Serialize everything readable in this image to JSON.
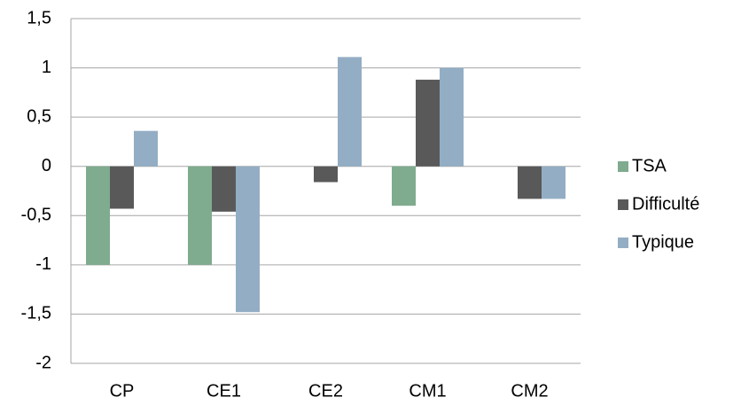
{
  "chart_data": {
    "type": "bar",
    "categories": [
      "CP",
      "CE1",
      "CE2",
      "CM1",
      "CM2"
    ],
    "series": [
      {
        "name": "TSA",
        "color": "#7fab8e",
        "values": [
          -1,
          -1,
          0,
          -0.4,
          0
        ]
      },
      {
        "name": "Difficulté",
        "color": "#595959",
        "values": [
          -0.43,
          -0.46,
          -0.16,
          0.88,
          -0.33
        ]
      },
      {
        "name": "Typique",
        "color": "#93aec4",
        "values": [
          0.36,
          -1.48,
          1.11,
          1.0,
          -0.33
        ]
      }
    ],
    "ylim": [
      -2,
      1.5
    ],
    "yticks": [
      -2,
      {
        "value": -1.5,
        "label": "-1,5"
      },
      -1,
      {
        "value": -0.5,
        "label": "-0,5"
      },
      0,
      {
        "value": 0.5,
        "label": "0,5"
      },
      1,
      {
        "value": 1.5,
        "label": "1,5"
      }
    ],
    "grid": true,
    "legend": "right"
  }
}
